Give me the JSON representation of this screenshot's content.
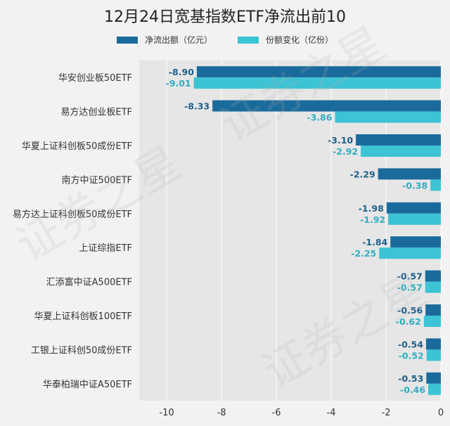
{
  "title": "12月24日宽基指数ETF净流出前10",
  "watermark": "证券之星",
  "colors": {
    "net_outflow": "#1a6b9c",
    "share_change": "#3cc3d4",
    "plot_bg": "#e6e6e6",
    "page_bg": "#f2f2f2"
  },
  "chart_data": {
    "type": "bar",
    "orientation": "horizontal",
    "title": "12月24日宽基指数ETF净流出前10",
    "categories": [
      "华安创业板50ETF",
      "易方达创业板ETF",
      "华夏上证科创板50成份ETF",
      "南方中证500ETF",
      "易方达上证科创板50成份ETF",
      "上证综指ETF",
      "汇添富中证A500ETF",
      "华夏上证科创板100ETF",
      "工银上证科创50成份ETF",
      "华泰柏瑞中证A50ETF"
    ],
    "series": [
      {
        "name": "净流出额（亿元）",
        "values": [
          -8.9,
          -8.33,
          -3.1,
          -2.29,
          -1.98,
          -1.84,
          -0.57,
          -0.56,
          -0.54,
          -0.53
        ],
        "labels": [
          "-8.90",
          "-8.33",
          "-3.10",
          "-2.29",
          "-1.98",
          "-1.84",
          "-0.57",
          "-0.56",
          "-0.54",
          "-0.53"
        ]
      },
      {
        "name": "份额变化（亿份）",
        "values": [
          -9.01,
          -3.86,
          -2.92,
          -0.38,
          -1.92,
          -2.25,
          -0.57,
          -0.62,
          -0.52,
          -0.46
        ],
        "labels": [
          "-9.01",
          "-3.86",
          "-2.92",
          "-0.38",
          "-1.92",
          "-2.25",
          "-0.57",
          "-0.62",
          "-0.52",
          "-0.46"
        ]
      }
    ],
    "xlim": [
      -11,
      0
    ],
    "xticks": [
      "-10",
      "-8",
      "-6",
      "-4",
      "-2",
      "0"
    ],
    "xtick_values": [
      -10,
      -8,
      -6,
      -4,
      -2,
      0
    ],
    "grid": true,
    "legend_position": "top"
  }
}
